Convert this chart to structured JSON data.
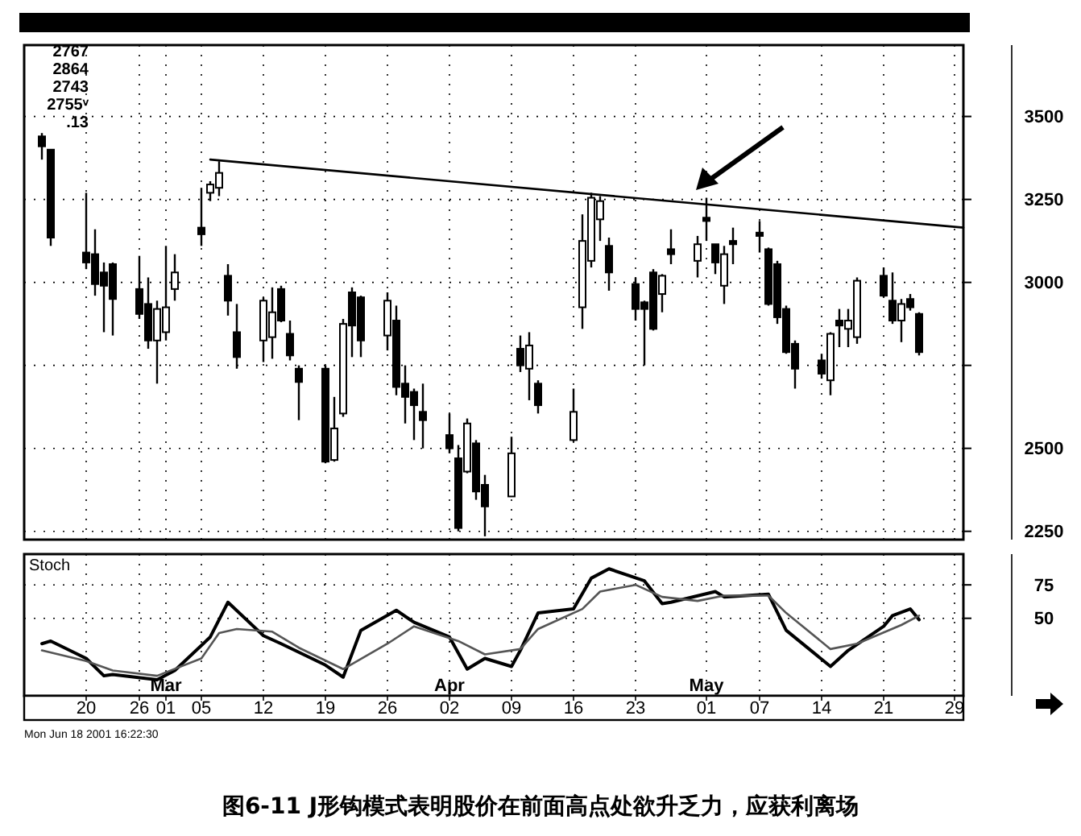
{
  "chart_data": [
    {
      "type": "candlestick",
      "title": "图6-11 J形钩模式表明股价在前面高点处欲升乏力，应获利离场",
      "annotations": [
        "2767",
        "2864",
        "2743",
        "2755ᵛ",
        ".13"
      ],
      "x": [
        "2001-02-15",
        "2001-02-16",
        "2001-02-20",
        "2001-02-21",
        "2001-02-22",
        "2001-02-23",
        "2001-02-26",
        "2001-02-27",
        "2001-02-28",
        "2001-03-01",
        "2001-03-02",
        "2001-03-05",
        "2001-03-06",
        "2001-03-07",
        "2001-03-08",
        "2001-03-09",
        "2001-03-12",
        "2001-03-13",
        "2001-03-14",
        "2001-03-15",
        "2001-03-16",
        "2001-03-19",
        "2001-03-20",
        "2001-03-21",
        "2001-03-22",
        "2001-03-23",
        "2001-03-26",
        "2001-03-27",
        "2001-03-28",
        "2001-03-29",
        "2001-03-30",
        "2001-04-02",
        "2001-04-03",
        "2001-04-04",
        "2001-04-05",
        "2001-04-06",
        "2001-04-09",
        "2001-04-10",
        "2001-04-11",
        "2001-04-12",
        "2001-04-16",
        "2001-04-17",
        "2001-04-18",
        "2001-04-19",
        "2001-04-20",
        "2001-04-23",
        "2001-04-24",
        "2001-04-25",
        "2001-04-26",
        "2001-04-27",
        "2001-04-30",
        "2001-05-01",
        "2001-05-02",
        "2001-05-03",
        "2001-05-04",
        "2001-05-07",
        "2001-05-08",
        "2001-05-09",
        "2001-05-10",
        "2001-05-11",
        "2001-05-14",
        "2001-05-15",
        "2001-05-16",
        "2001-05-17",
        "2001-05-18",
        "2001-05-21",
        "2001-05-22",
        "2001-05-23",
        "2001-05-24",
        "2001-05-25"
      ],
      "ohlc": [
        [
          3440,
          3450,
          3370,
          3410
        ],
        [
          3400,
          3400,
          3110,
          3135
        ],
        [
          3090,
          3270,
          3040,
          3060
        ],
        [
          3085,
          3160,
          2960,
          2995
        ],
        [
          3030,
          3060,
          2850,
          2990
        ],
        [
          3055,
          3060,
          2840,
          2950
        ],
        [
          2980,
          3080,
          2890,
          2905
        ],
        [
          2935,
          3015,
          2800,
          2825
        ],
        [
          2825,
          2945,
          2695,
          2920
        ],
        [
          2850,
          3110,
          2825,
          2925
        ],
        [
          2980,
          3085,
          2945,
          3030
        ],
        [
          3165,
          3285,
          3110,
          3145
        ],
        [
          3270,
          3305,
          3245,
          3295
        ],
        [
          3285,
          3365,
          3260,
          3330
        ],
        [
          3020,
          3055,
          2900,
          2945
        ],
        [
          2850,
          2935,
          2740,
          2775
        ],
        [
          2825,
          2955,
          2760,
          2945
        ],
        [
          2835,
          2985,
          2770,
          2910
        ],
        [
          2980,
          2990,
          2880,
          2885
        ],
        [
          2845,
          2885,
          2765,
          2780
        ],
        [
          2740,
          2750,
          2585,
          2700
        ],
        [
          2740,
          2750,
          2455,
          2460
        ],
        [
          2465,
          2655,
          2460,
          2560
        ],
        [
          2605,
          2890,
          2595,
          2875
        ],
        [
          2970,
          2985,
          2775,
          2870
        ],
        [
          2955,
          2960,
          2775,
          2825
        ],
        [
          2840,
          2970,
          2795,
          2945
        ],
        [
          2885,
          2930,
          2660,
          2685
        ],
        [
          2695,
          2750,
          2575,
          2655
        ],
        [
          2670,
          2680,
          2525,
          2630
        ],
        [
          2610,
          2695,
          2500,
          2585
        ],
        [
          2540,
          2605,
          2485,
          2500
        ],
        [
          2470,
          2510,
          2250,
          2260
        ],
        [
          2430,
          2590,
          2425,
          2575
        ],
        [
          2515,
          2525,
          2345,
          2370
        ],
        [
          2390,
          2420,
          2235,
          2325
        ],
        [
          2355,
          2535,
          2355,
          2485
        ],
        [
          2800,
          2840,
          2730,
          2750
        ],
        [
          2740,
          2850,
          2645,
          2810
        ],
        [
          2695,
          2705,
          2605,
          2630
        ],
        [
          2525,
          2680,
          2520,
          2610
        ],
        [
          2925,
          3205,
          2860,
          3125
        ],
        [
          3065,
          3270,
          3045,
          3255
        ],
        [
          3190,
          3260,
          3125,
          3245
        ],
        [
          3110,
          3135,
          2975,
          3030
        ],
        [
          2995,
          3015,
          2885,
          2920
        ],
        [
          2940,
          2945,
          2750,
          2920
        ],
        [
          3030,
          3040,
          2855,
          2860
        ],
        [
          2965,
          3025,
          2910,
          3020
        ],
        [
          3100,
          3160,
          3055,
          3085
        ],
        [
          3065,
          3140,
          3015,
          3115
        ],
        [
          3195,
          3255,
          3125,
          3185
        ],
        [
          3115,
          3115,
          3025,
          3060
        ],
        [
          2990,
          3110,
          2935,
          3085
        ],
        [
          3125,
          3165,
          3055,
          3115
        ],
        [
          3150,
          3185,
          3090,
          3140
        ],
        [
          3100,
          3105,
          2930,
          2935
        ],
        [
          3055,
          3065,
          2875,
          2895
        ],
        [
          2920,
          2930,
          2785,
          2790
        ],
        [
          2815,
          2825,
          2680,
          2740
        ],
        [
          2765,
          2785,
          2710,
          2725
        ],
        [
          2705,
          2850,
          2660,
          2845
        ],
        [
          2885,
          2920,
          2805,
          2870
        ],
        [
          2860,
          2920,
          2805,
          2885
        ],
        [
          2835,
          3015,
          2815,
          3005
        ],
        [
          3020,
          3045,
          2955,
          2960
        ],
        [
          2945,
          3030,
          2875,
          2885
        ],
        [
          2885,
          2950,
          2820,
          2935
        ],
        [
          2950,
          2965,
          2915,
          2925
        ],
        [
          2905,
          2910,
          2780,
          2790
        ]
      ],
      "series": [
        {
          "type": "line",
          "color": "#000000",
          "x": [
            "2001-03-06",
            "2001-05-30"
          ],
          "values": [
            3370,
            3165
          ]
        }
      ],
      "xlim": [
        "2001-02-13",
        "2001-05-30"
      ],
      "xticks": [
        {
          "value": "2001-02-20",
          "label": null
        },
        {
          "value": "2001-02-26",
          "label": null
        },
        {
          "value": "2001-03-01",
          "label": null
        },
        {
          "value": "2001-03-05",
          "label": null
        },
        {
          "value": "2001-03-12",
          "label": null
        },
        {
          "value": "2001-03-19",
          "label": null
        },
        {
          "value": "2001-03-26",
          "label": null
        },
        {
          "value": "2001-04-02",
          "label": null
        },
        {
          "value": "2001-04-09",
          "label": null
        },
        {
          "value": "2001-04-16",
          "label": null
        },
        {
          "value": "2001-04-23",
          "label": null
        },
        {
          "value": "2001-05-01",
          "label": null
        },
        {
          "value": "2001-05-07",
          "label": null
        },
        {
          "value": "2001-05-14",
          "label": null
        },
        {
          "value": "2001-05-21",
          "label": null
        },
        {
          "value": "2001-05-29",
          "label": null
        }
      ],
      "ylim": [
        2225,
        3715
      ],
      "yticks": [
        2250,
        2500,
        {
          "value": 2750,
          "label": null
        },
        3000,
        3250,
        3500
      ],
      "grid": true,
      "tick_labels": "y"
    },
    {
      "type": "line",
      "title": "Stoch",
      "annotations": [
        "Mon Jun 18 2001 16:22:30"
      ],
      "x2lim": [
        "2001-02-13",
        "2001-05-30"
      ],
      "x2ticks": [
        {
          "value": "2001-03-01",
          "label": "Mar"
        },
        {
          "value": "2001-04-02",
          "label": "Apr"
        },
        {
          "value": "2001-05-01",
          "label": "May"
        }
      ],
      "series": [
        {
          "color": "#000000",
          "x": [
            "2001-02-15",
            "2001-02-16",
            "2001-02-20",
            "2001-02-22",
            "2001-02-23",
            "2001-02-28",
            "2001-03-02",
            "2001-03-06",
            "2001-03-08",
            "2001-03-12",
            "2001-03-14",
            "2001-03-19",
            "2001-03-21",
            "2001-03-23",
            "2001-03-27",
            "2001-03-29",
            "2001-04-02",
            "2001-04-04",
            "2001-04-06",
            "2001-04-09",
            "2001-04-10",
            "2001-04-12",
            "2001-04-16",
            "2001-04-18",
            "2001-04-20",
            "2001-04-24",
            "2001-04-26",
            "2001-04-27",
            "2001-05-02",
            "2001-05-03",
            "2001-05-08",
            "2001-05-10",
            "2001-05-15",
            "2001-05-17",
            "2001-05-21",
            "2001-05-22",
            "2001-05-24",
            "2001-05-25"
          ],
          "values": [
            31,
            33,
            20,
            7,
            8,
            4,
            11,
            36,
            62,
            37,
            31,
            15,
            6,
            41,
            56,
            47,
            36,
            12,
            20,
            14,
            26,
            54,
            57,
            80,
            87,
            78,
            61,
            62,
            70,
            66,
            68,
            41,
            14,
            26,
            44,
            52,
            57,
            49
          ]
        },
        {
          "color": "#555555",
          "x": [
            "2001-02-15",
            "2001-02-20",
            "2001-02-23",
            "2001-02-28",
            "2001-03-05",
            "2001-03-07",
            "2001-03-09",
            "2001-03-13",
            "2001-03-16",
            "2001-03-21",
            "2001-03-26",
            "2001-03-29",
            "2001-04-03",
            "2001-04-06",
            "2001-04-10",
            "2001-04-12",
            "2001-04-17",
            "2001-04-19",
            "2001-04-23",
            "2001-04-26",
            "2001-04-30",
            "2001-05-03",
            "2001-05-08",
            "2001-05-10",
            "2001-05-15",
            "2001-05-18",
            "2001-05-23",
            "2001-05-25"
          ],
          "values": [
            26,
            18,
            11,
            7,
            20,
            39,
            42,
            40,
            28,
            12,
            31,
            44,
            33,
            23,
            27,
            42,
            57,
            70,
            75,
            66,
            63,
            67,
            67,
            54,
            27,
            31,
            45,
            52
          ]
        }
      ],
      "xlim": [
        "2001-02-13",
        "2001-05-30"
      ],
      "xticks": [
        {
          "value": "2001-02-20",
          "label": "20"
        },
        {
          "value": "2001-02-26",
          "label": "26"
        },
        {
          "value": "2001-03-01",
          "label": "01"
        },
        {
          "value": "2001-03-05",
          "label": "05"
        },
        {
          "value": "2001-03-12",
          "label": "12"
        },
        {
          "value": "2001-03-19",
          "label": "19"
        },
        {
          "value": "2001-03-26",
          "label": "26"
        },
        {
          "value": "2001-04-02",
          "label": "02"
        },
        {
          "value": "2001-04-09",
          "label": "09"
        },
        {
          "value": "2001-04-16",
          "label": "16"
        },
        {
          "value": "2001-04-23",
          "label": "23"
        },
        {
          "value": "2001-05-01",
          "label": "01"
        },
        {
          "value": "2001-05-07",
          "label": "07"
        },
        {
          "value": "2001-05-14",
          "label": "14"
        },
        {
          "value": "2001-05-21",
          "label": "21"
        },
        {
          "value": "2001-05-29",
          "label": "29"
        }
      ],
      "ylim": [
        -8,
        98
      ],
      "yticks": [
        50,
        75
      ],
      "grid": true
    }
  ]
}
